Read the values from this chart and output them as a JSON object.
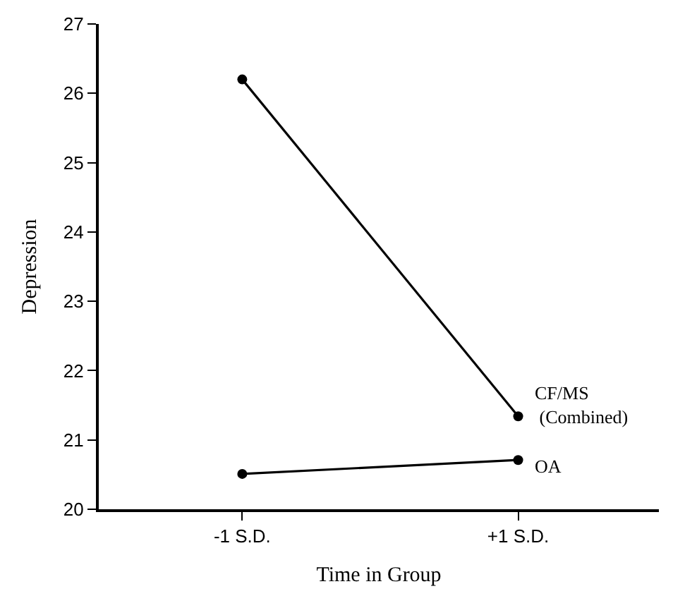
{
  "chart_data": {
    "type": "line",
    "xlabel": "Time in Group",
    "ylabel": "Depression",
    "categories": [
      "-1 S.D.",
      "+1 S.D."
    ],
    "series": [
      {
        "name": "CF/MS (Combined)",
        "color": "#000000",
        "values": [
          26.2,
          21.34
        ]
      },
      {
        "name": "OA",
        "color": "#000000",
        "values": [
          20.51,
          20.71
        ]
      }
    ],
    "ylim": [
      20,
      27
    ],
    "yticks": [
      20,
      21,
      22,
      23,
      24,
      25,
      26,
      27
    ],
    "legend": false,
    "marker": "circle",
    "line_style": "solid"
  }
}
